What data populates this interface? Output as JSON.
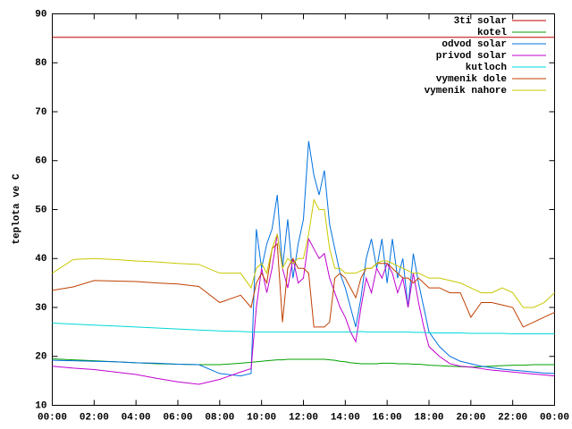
{
  "chart_data": {
    "type": "line",
    "y_label": "teplota ve C",
    "x": [
      0,
      1,
      2,
      3,
      4,
      5,
      6,
      7,
      8,
      9,
      9.5,
      9.75,
      10,
      10.25,
      10.5,
      10.75,
      11,
      11.25,
      11.5,
      11.75,
      12,
      12.25,
      12.5,
      12.75,
      13,
      13.25,
      13.5,
      13.75,
      14,
      14.25,
      14.5,
      14.75,
      15,
      15.25,
      15.5,
      15.75,
      16,
      16.25,
      16.5,
      16.75,
      17,
      17.25,
      17.5,
      17.75,
      18,
      18.5,
      19,
      19.5,
      20,
      20.5,
      21,
      21.5,
      22,
      22.5,
      23,
      23.5,
      24
    ],
    "xlim": [
      0,
      24
    ],
    "xticks": [
      {
        "value": 0,
        "label": "00:00"
      },
      {
        "value": 2,
        "label": "02:00"
      },
      {
        "value": 4,
        "label": "04:00"
      },
      {
        "value": 6,
        "label": "06:00"
      },
      {
        "value": 8,
        "label": "08:00"
      },
      {
        "value": 10,
        "label": "10:00"
      },
      {
        "value": 12,
        "label": "12:00"
      },
      {
        "value": 14,
        "label": "14:00"
      },
      {
        "value": 16,
        "label": "16:00"
      },
      {
        "value": 18,
        "label": "18:00"
      },
      {
        "value": 20,
        "label": "20:00"
      },
      {
        "value": 22,
        "label": "22:00"
      },
      {
        "value": 24,
        "label": "00:00"
      }
    ],
    "ylim": [
      10,
      90
    ],
    "yticks": [
      10,
      20,
      30,
      40,
      50,
      60,
      70,
      80,
      90
    ],
    "legend": "top-right",
    "series": [
      {
        "name": "3ti solar",
        "color": "#c00000",
        "values": [
          85.2,
          85.2,
          85.2,
          85.2,
          85.2,
          85.2,
          85.2,
          85.2,
          85.2,
          85.2,
          85.2,
          85.2,
          85.2,
          85.2,
          85.2,
          85.2,
          85.2,
          85.2,
          85.2,
          85.2,
          85.2,
          85.2,
          85.2,
          85.2,
          85.2,
          85.2,
          85.2,
          85.2,
          85.2,
          85.2,
          85.2,
          85.2,
          85.2,
          85.2,
          85.2,
          85.2,
          85.2,
          85.2,
          85.2,
          85.2,
          85.2,
          85.2,
          85.2,
          85.2,
          85.2,
          85.2,
          85.2,
          85.2,
          85.2,
          85.2,
          85.2,
          85.2,
          85.2,
          85.2,
          85.2,
          85.2,
          85.2
        ]
      },
      {
        "name": "kotel",
        "color": "#00a000",
        "values": [
          19.5,
          19.3,
          19.1,
          18.9,
          18.7,
          18.5,
          18.4,
          18.3,
          18.3,
          18.6,
          18.8,
          18.9,
          19,
          19.1,
          19.2,
          19.3,
          19.3,
          19.4,
          19.4,
          19.4,
          19.4,
          19.4,
          19.4,
          19.4,
          19.4,
          19.3,
          19.2,
          19,
          18.9,
          18.7,
          18.6,
          18.5,
          18.5,
          18.5,
          18.5,
          18.6,
          18.6,
          18.6,
          18.5,
          18.5,
          18.5,
          18.4,
          18.4,
          18.3,
          18.2,
          18.1,
          18,
          17.9,
          17.8,
          17.9,
          18,
          18.1,
          18.2,
          18.2,
          18.3,
          18.3,
          18.3
        ]
      },
      {
        "name": "odvod solar",
        "color": "#0070e0",
        "values": [
          19.2,
          19.1,
          19,
          18.9,
          18.7,
          18.6,
          18.4,
          18.3,
          16.5,
          16,
          16.5,
          46,
          38,
          43,
          46,
          53,
          38,
          48,
          36,
          43,
          48,
          64,
          57,
          53,
          58,
          47,
          42,
          37,
          34,
          30,
          26,
          32,
          40,
          44,
          38,
          44,
          35,
          44,
          36,
          40,
          30,
          41,
          35,
          30,
          25,
          22,
          20,
          19,
          18.5,
          18,
          17.7,
          17.4,
          17.2,
          17,
          16.8,
          16.6,
          16.5
        ]
      },
      {
        "name": "privod solar",
        "color": "#c000d0",
        "values": [
          18,
          17.6,
          17.3,
          16.8,
          16.3,
          15.5,
          14.8,
          14.3,
          15.3,
          16.8,
          17.5,
          30,
          38,
          33,
          38,
          45,
          38,
          34,
          40,
          35,
          36,
          44,
          42,
          40,
          41,
          36,
          33,
          30,
          28,
          25,
          23,
          30,
          36,
          33,
          38,
          36,
          39,
          37,
          33,
          36,
          30,
          37,
          31,
          26,
          22,
          20,
          18.5,
          18,
          17.8,
          17.5,
          17.2,
          17,
          16.8,
          16.6,
          16.4,
          16.2,
          16
        ]
      },
      {
        "name": "kutloch",
        "color": "#00d8d8",
        "values": [
          26.8,
          26.6,
          26.4,
          26.2,
          26,
          25.8,
          25.6,
          25.4,
          25.2,
          25.1,
          25,
          25,
          25,
          25,
          25,
          25,
          25,
          25,
          25,
          25,
          25,
          25,
          25,
          25,
          25,
          25,
          25,
          25,
          25,
          25,
          25,
          25.1,
          25,
          25,
          25,
          25,
          25,
          25,
          25,
          25,
          25,
          24.9,
          24.9,
          24.9,
          24.8,
          24.8,
          24.8,
          24.8,
          24.7,
          24.7,
          24.7,
          24.7,
          24.6,
          24.6,
          24.6,
          24.6,
          24.6
        ]
      },
      {
        "name": "vymenik dole",
        "color": "#c04000",
        "values": [
          33.5,
          34.2,
          35.5,
          35.4,
          35.3,
          35,
          34.8,
          34.3,
          31,
          32.5,
          30,
          35,
          37,
          35,
          42,
          43,
          27,
          38,
          40,
          38,
          38,
          37,
          26,
          26,
          26,
          27,
          36,
          37,
          36,
          34,
          32,
          36,
          38,
          38,
          39,
          39,
          39,
          38,
          37,
          36,
          36,
          35,
          36,
          35,
          34,
          34,
          33,
          33,
          28,
          31,
          31,
          30.5,
          30,
          26,
          27,
          28,
          29
        ]
      },
      {
        "name": "vymenik nahore",
        "color": "#c8c800",
        "values": [
          37,
          39.8,
          40,
          39.8,
          39.5,
          39.3,
          39,
          38.8,
          37,
          37,
          34,
          38,
          39,
          37,
          42,
          45,
          38,
          40,
          39,
          40,
          40,
          45,
          52,
          50,
          50,
          42,
          38,
          38,
          37,
          37,
          37,
          37.5,
          38,
          38,
          39,
          39.5,
          39.5,
          39,
          38.5,
          38,
          37.5,
          37,
          37,
          36.5,
          36,
          36,
          35.5,
          35,
          34,
          33,
          33,
          34,
          33,
          30,
          30,
          31,
          33
        ]
      }
    ]
  }
}
